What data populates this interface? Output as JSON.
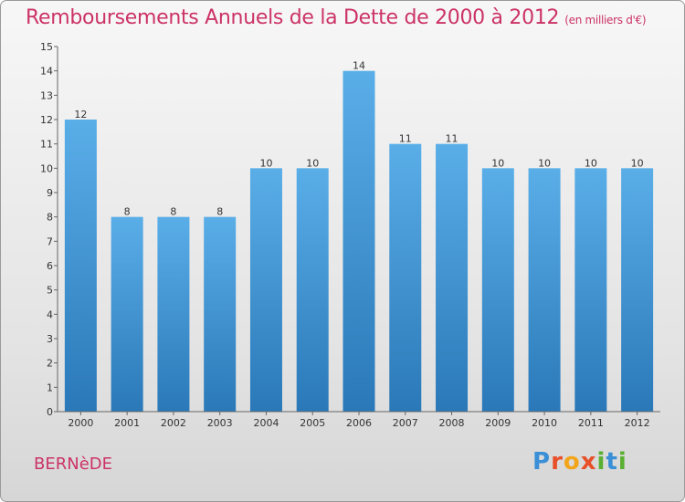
{
  "header": {
    "title": "Remboursements Annuels de la Dette de 2000 à 2012",
    "unit": "(en milliers d'€)"
  },
  "footer": {
    "commune": "BERNèDE",
    "logo": "Proxiti"
  },
  "colors": {
    "accent": "#cc3366",
    "bar_top": "#5aaee8",
    "bar_bottom": "#2a78b8"
  },
  "chart_data": {
    "type": "bar",
    "categories": [
      "2000",
      "2001",
      "2002",
      "2003",
      "2004",
      "2005",
      "2006",
      "2007",
      "2008",
      "2009",
      "2010",
      "2011",
      "2012"
    ],
    "values": [
      12,
      8,
      8,
      8,
      10,
      10,
      14,
      11,
      11,
      10,
      10,
      10,
      10
    ],
    "title": "Remboursements Annuels de la Dette de 2000 à 2012",
    "ylim": [
      0,
      15
    ],
    "yticks": [
      0,
      1,
      2,
      3,
      4,
      5,
      6,
      7,
      8,
      9,
      10,
      11,
      12,
      13,
      14,
      15
    ],
    "grid": false,
    "data_labels": true
  }
}
